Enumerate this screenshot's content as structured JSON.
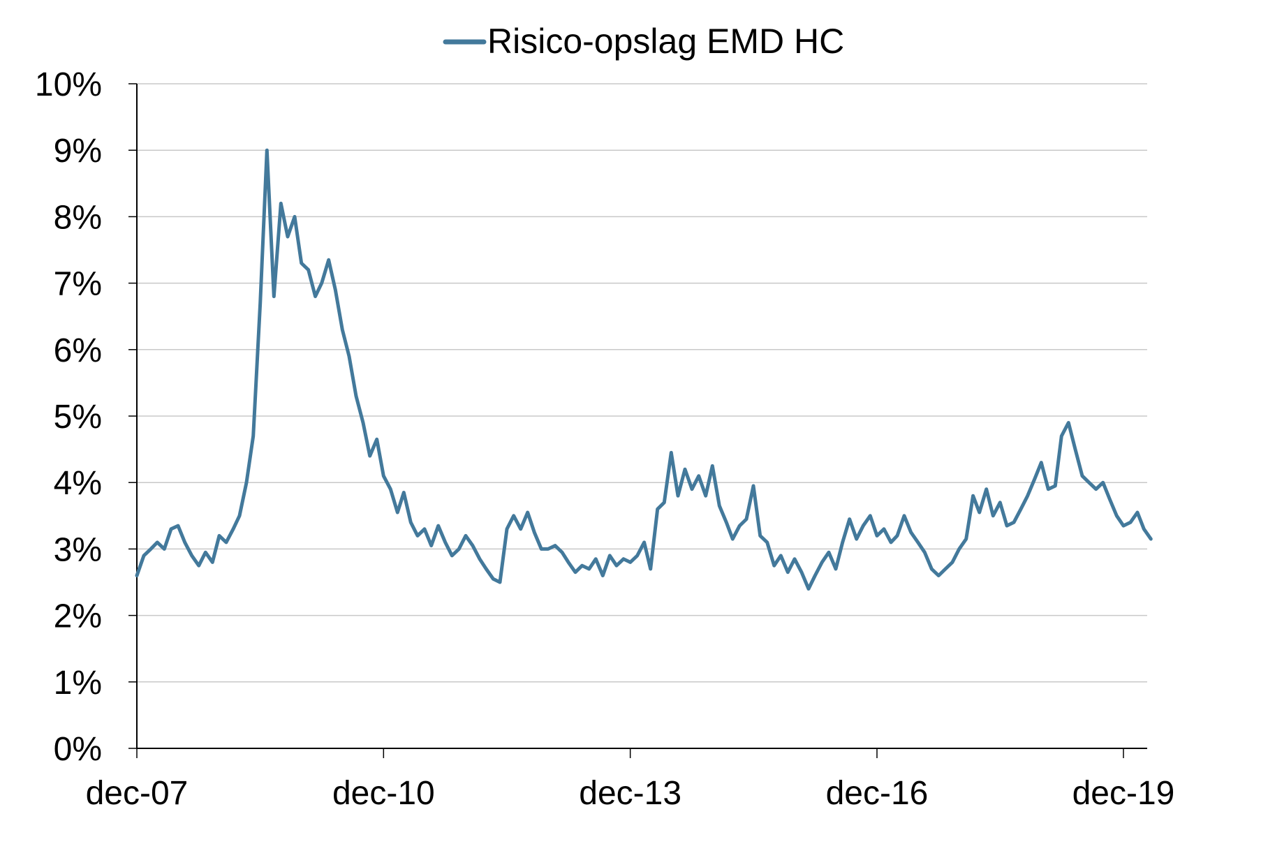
{
  "chart_data": {
    "type": "line",
    "title": "",
    "xlabel": "",
    "ylabel": "",
    "legend": {
      "position": "top-center"
    },
    "grid": {
      "y": true,
      "x": false
    },
    "ylim": [
      0,
      10
    ],
    "xlim": [
      "2007-12-01",
      "2020-04-01"
    ],
    "y_ticks": [
      {
        "value": 0,
        "label": "0%"
      },
      {
        "value": 1,
        "label": "1%"
      },
      {
        "value": 2,
        "label": "2%"
      },
      {
        "value": 3,
        "label": "3%"
      },
      {
        "value": 4,
        "label": "4%"
      },
      {
        "value": 5,
        "label": "5%"
      },
      {
        "value": 6,
        "label": "6%"
      },
      {
        "value": 7,
        "label": "7%"
      },
      {
        "value": 8,
        "label": "8%"
      },
      {
        "value": 9,
        "label": "9%"
      },
      {
        "value": 10,
        "label": "10%"
      }
    ],
    "x_ticks": [
      {
        "value": "2007-12-01",
        "label": "dec-07"
      },
      {
        "value": "2010-12-01",
        "label": "dec-10"
      },
      {
        "value": "2013-12-01",
        "label": "dec-13"
      },
      {
        "value": "2016-12-01",
        "label": "dec-16"
      },
      {
        "value": "2019-12-01",
        "label": "dec-19"
      }
    ],
    "series": [
      {
        "name": "Risico-opslag EMD HC",
        "color": "#43799b",
        "points": [
          [
            "2007-12-01",
            2.6
          ],
          [
            "2008-01-01",
            2.9
          ],
          [
            "2008-02-01",
            3.0
          ],
          [
            "2008-03-01",
            3.1
          ],
          [
            "2008-04-01",
            3.0
          ],
          [
            "2008-05-01",
            3.3
          ],
          [
            "2008-06-01",
            3.35
          ],
          [
            "2008-07-01",
            3.1
          ],
          [
            "2008-08-01",
            2.9
          ],
          [
            "2008-09-01",
            2.75
          ],
          [
            "2008-10-01",
            2.95
          ],
          [
            "2008-11-01",
            2.8
          ],
          [
            "2008-12-01",
            3.2
          ],
          [
            "2009-01-01",
            3.1
          ],
          [
            "2009-02-01",
            3.3
          ],
          [
            "2009-03-01",
            3.5
          ],
          [
            "2009-04-01",
            4.0
          ],
          [
            "2009-05-01",
            4.7
          ],
          [
            "2009-06-01",
            6.7
          ],
          [
            "2009-07-01",
            9.0
          ],
          [
            "2009-08-01",
            6.8
          ],
          [
            "2009-09-01",
            8.2
          ],
          [
            "2009-10-01",
            7.7
          ],
          [
            "2009-11-01",
            8.0
          ],
          [
            "2009-12-01",
            7.3
          ],
          [
            "2010-01-01",
            7.2
          ],
          [
            "2010-02-01",
            6.8
          ],
          [
            "2010-03-01",
            7.0
          ],
          [
            "2010-04-01",
            7.35
          ],
          [
            "2010-05-01",
            6.9
          ],
          [
            "2010-06-01",
            6.3
          ],
          [
            "2010-07-01",
            5.9
          ],
          [
            "2010-08-01",
            5.3
          ],
          [
            "2010-09-01",
            4.9
          ],
          [
            "2010-10-01",
            4.4
          ],
          [
            "2010-11-01",
            4.65
          ],
          [
            "2010-12-01",
            4.1
          ],
          [
            "2011-01-01",
            3.9
          ],
          [
            "2011-02-01",
            3.55
          ],
          [
            "2011-03-01",
            3.85
          ],
          [
            "2011-04-01",
            3.4
          ],
          [
            "2011-05-01",
            3.2
          ],
          [
            "2011-06-01",
            3.3
          ],
          [
            "2011-07-01",
            3.05
          ],
          [
            "2011-08-01",
            3.35
          ],
          [
            "2011-09-01",
            3.1
          ],
          [
            "2011-10-01",
            2.9
          ],
          [
            "2011-11-01",
            3.0
          ],
          [
            "2011-12-01",
            3.2
          ],
          [
            "2012-01-01",
            3.05
          ],
          [
            "2012-02-01",
            2.85
          ],
          [
            "2012-03-01",
            2.7
          ],
          [
            "2012-04-01",
            2.55
          ],
          [
            "2012-05-01",
            2.5
          ],
          [
            "2012-06-01",
            3.3
          ],
          [
            "2012-07-01",
            3.5
          ],
          [
            "2012-08-01",
            3.3
          ],
          [
            "2012-09-01",
            3.55
          ],
          [
            "2012-10-01",
            3.25
          ],
          [
            "2012-11-01",
            3.0
          ],
          [
            "2012-12-01",
            3.0
          ],
          [
            "2013-01-01",
            3.05
          ],
          [
            "2013-02-01",
            2.95
          ],
          [
            "2013-03-01",
            2.8
          ],
          [
            "2013-04-01",
            2.65
          ],
          [
            "2013-05-01",
            2.75
          ],
          [
            "2013-06-01",
            2.7
          ],
          [
            "2013-07-01",
            2.85
          ],
          [
            "2013-08-01",
            2.6
          ],
          [
            "2013-09-01",
            2.9
          ],
          [
            "2013-10-01",
            2.75
          ],
          [
            "2013-11-01",
            2.85
          ],
          [
            "2013-12-01",
            2.8
          ],
          [
            "2014-01-01",
            2.9
          ],
          [
            "2014-02-01",
            3.1
          ],
          [
            "2014-03-01",
            2.7
          ],
          [
            "2014-04-01",
            3.6
          ],
          [
            "2014-05-01",
            3.7
          ],
          [
            "2014-06-01",
            4.45
          ],
          [
            "2014-07-01",
            3.8
          ],
          [
            "2014-08-01",
            4.2
          ],
          [
            "2014-09-01",
            3.9
          ],
          [
            "2014-10-01",
            4.1
          ],
          [
            "2014-11-01",
            3.8
          ],
          [
            "2014-12-01",
            4.25
          ],
          [
            "2015-01-01",
            3.65
          ],
          [
            "2015-02-01",
            3.4
          ],
          [
            "2015-03-01",
            3.15
          ],
          [
            "2015-04-01",
            3.35
          ],
          [
            "2015-05-01",
            3.45
          ],
          [
            "2015-06-01",
            3.95
          ],
          [
            "2015-07-01",
            3.2
          ],
          [
            "2015-08-01",
            3.1
          ],
          [
            "2015-09-01",
            2.75
          ],
          [
            "2015-10-01",
            2.9
          ],
          [
            "2015-11-01",
            2.65
          ],
          [
            "2015-12-01",
            2.85
          ],
          [
            "2016-01-01",
            2.65
          ],
          [
            "2016-02-01",
            2.4
          ],
          [
            "2016-03-01",
            2.6
          ],
          [
            "2016-04-01",
            2.8
          ],
          [
            "2016-05-01",
            2.95
          ],
          [
            "2016-06-01",
            2.7
          ],
          [
            "2016-07-01",
            3.1
          ],
          [
            "2016-08-01",
            3.45
          ],
          [
            "2016-09-01",
            3.15
          ],
          [
            "2016-10-01",
            3.35
          ],
          [
            "2016-11-01",
            3.5
          ],
          [
            "2016-12-01",
            3.2
          ],
          [
            "2017-01-01",
            3.3
          ],
          [
            "2017-02-01",
            3.1
          ],
          [
            "2017-03-01",
            3.2
          ],
          [
            "2017-04-01",
            3.5
          ],
          [
            "2017-05-01",
            3.25
          ],
          [
            "2017-06-01",
            3.1
          ],
          [
            "2017-07-01",
            2.95
          ],
          [
            "2017-08-01",
            2.7
          ],
          [
            "2017-09-01",
            2.6
          ],
          [
            "2017-10-01",
            2.7
          ],
          [
            "2017-11-01",
            2.8
          ],
          [
            "2017-12-01",
            3.0
          ],
          [
            "2018-01-01",
            3.15
          ],
          [
            "2018-02-01",
            3.8
          ],
          [
            "2018-03-01",
            3.55
          ],
          [
            "2018-04-01",
            3.9
          ],
          [
            "2018-05-01",
            3.5
          ],
          [
            "2018-06-01",
            3.7
          ],
          [
            "2018-07-01",
            3.35
          ],
          [
            "2018-08-01",
            3.4
          ],
          [
            "2018-09-01",
            3.6
          ],
          [
            "2018-10-01",
            3.8
          ],
          [
            "2018-11-01",
            4.05
          ],
          [
            "2018-12-01",
            4.3
          ],
          [
            "2019-01-01",
            3.9
          ],
          [
            "2019-02-01",
            3.95
          ],
          [
            "2019-03-01",
            4.7
          ],
          [
            "2019-04-01",
            4.9
          ],
          [
            "2019-05-01",
            4.5
          ],
          [
            "2019-06-01",
            4.1
          ],
          [
            "2019-07-01",
            4.0
          ],
          [
            "2019-08-01",
            3.9
          ],
          [
            "2019-09-01",
            4.0
          ],
          [
            "2019-10-01",
            3.75
          ],
          [
            "2019-11-01",
            3.5
          ],
          [
            "2019-12-01",
            3.35
          ],
          [
            "2020-01-01",
            3.4
          ],
          [
            "2020-02-01",
            3.55
          ],
          [
            "2020-03-01",
            3.3
          ],
          [
            "2020-04-01",
            3.15
          ]
        ]
      }
    ]
  }
}
